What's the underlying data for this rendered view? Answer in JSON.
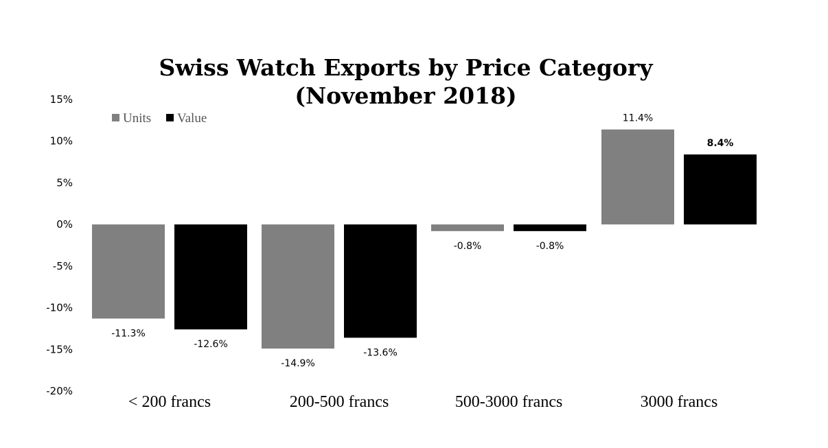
{
  "chart_data": {
    "type": "bar",
    "title": "Swiss Watch Exports by Price Category",
    "subtitle": "(November 2018)",
    "categories": [
      "< 200 francs",
      "200-500 francs",
      "500-3000 francs",
      "3000 francs"
    ],
    "series": [
      {
        "name": "Units",
        "values": [
          -11.3,
          -14.9,
          -0.8,
          11.4
        ],
        "labels": [
          "-11.3%",
          "-14.9%",
          "-0.8%",
          "11.4%"
        ],
        "color": "#808080"
      },
      {
        "name": "Value",
        "values": [
          -12.6,
          -13.6,
          -0.8,
          8.4
        ],
        "labels": [
          "-12.6%",
          "-13.6%",
          "-0.8%",
          "8.4%"
        ],
        "color": "#000000"
      }
    ],
    "y_ticks": [
      15,
      10,
      5,
      0,
      -5,
      -10,
      -15,
      -20
    ],
    "y_tick_labels": [
      "15%",
      "10%",
      "5%",
      "0%",
      "-5%",
      "-10%",
      "-15%",
      "-20%"
    ],
    "ylim": [
      -20,
      15
    ],
    "xlabel": "",
    "ylabel": "",
    "grid": false,
    "legend": "top-left"
  }
}
